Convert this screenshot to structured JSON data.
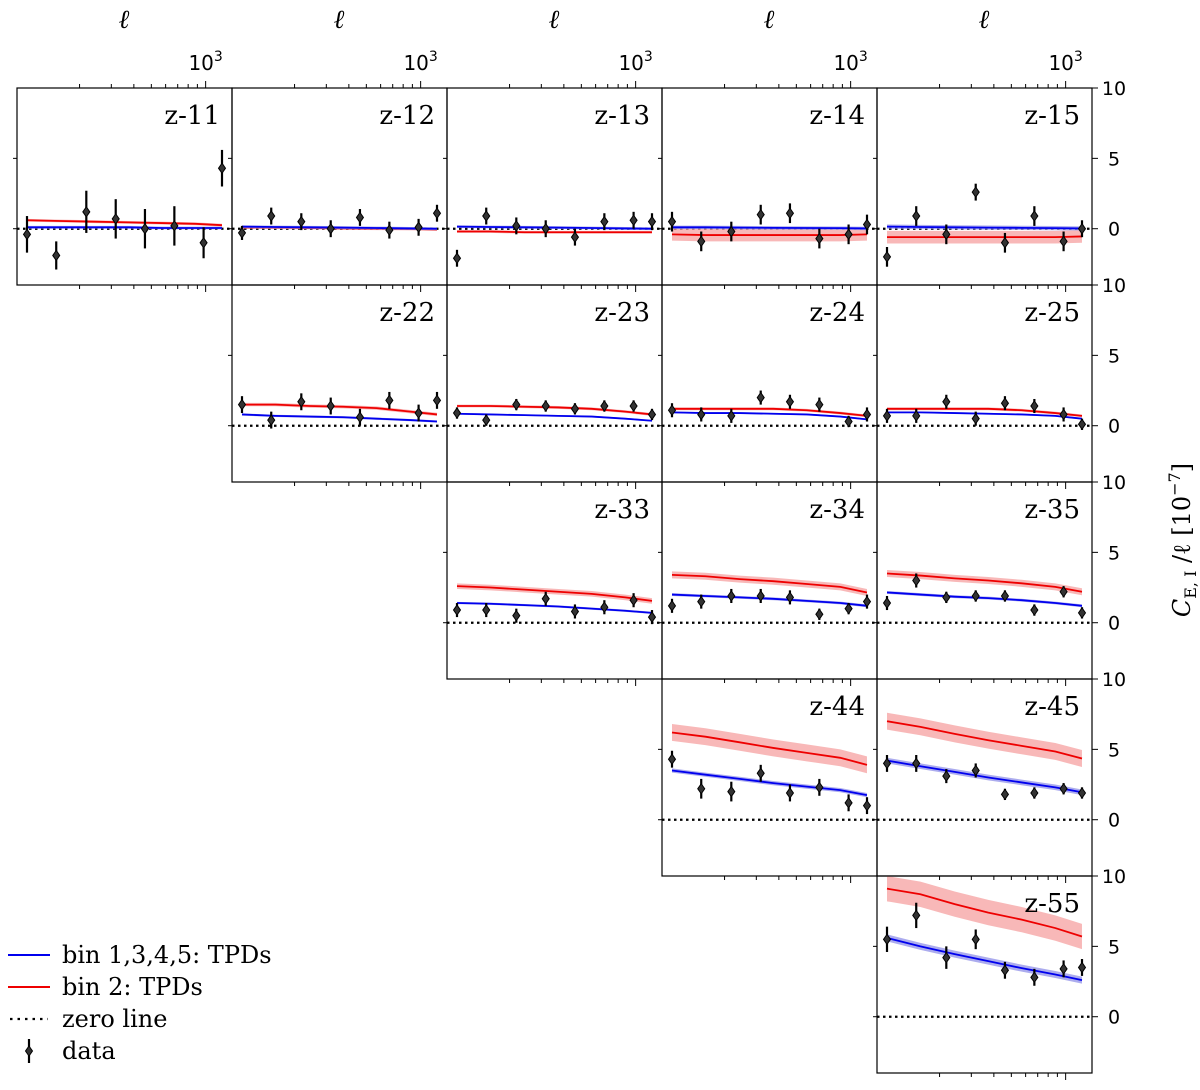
{
  "figure": {
    "top_axis_label": "ℓ",
    "top_tick_mantissa": "10",
    "top_tick_exponent": "3",
    "ylabel_main": "C",
    "ylabel_sub": "E, I",
    "ylabel_rest": " /ℓ [10",
    "ylabel_exp": "−7",
    "ylabel_close": "]"
  },
  "legend": [
    {
      "label": "bin 1,3,4,5: TPDs",
      "kind": "blue-line"
    },
    {
      "label": "bin 2: TPDs",
      "kind": "red-line"
    },
    {
      "label": "zero line",
      "kind": "dotted-line"
    },
    {
      "label": "data",
      "kind": "errorbar"
    }
  ],
  "colors": {
    "blue": "#0000ee",
    "blue_band": "#9090e8",
    "red": "#ee0000",
    "red_band": "#f5a0a0",
    "data": "#000000"
  },
  "chart_data": {
    "type": "line",
    "x_scale": "log",
    "xlim": [
      90,
      1400
    ],
    "ylim": [
      -4,
      10
    ],
    "y_tick_labels": [
      "0",
      "5",
      "10"
    ],
    "y_ticks": [
      0,
      5,
      10
    ],
    "x_ticks_labeled": [
      1000
    ],
    "ell": [
      95,
      150,
      240,
      380,
      600,
      950,
      1350
    ],
    "panels": [
      {
        "label": "z-11",
        "row": 0,
        "col": 0,
        "top_ticks": true,
        "blue": [
          0.1,
          0.1,
          0.1,
          0.1,
          0.05,
          0.05,
          0.05
        ],
        "blue_err": 0.1,
        "red": [
          0.6,
          0.55,
          0.5,
          0.45,
          0.4,
          0.35,
          0.25
        ],
        "red_err": 0.1,
        "data_y": [
          -0.4,
          -1.9,
          1.2,
          0.7,
          0.0,
          0.2,
          -1.0,
          4.3
        ],
        "data_ell": [
          95,
          150,
          240,
          380,
          600,
          950,
          1500,
          2000
        ],
        "data_err": [
          1.3,
          1.0,
          1.5,
          1.4,
          1.4,
          1.4,
          1.1,
          1.3
        ]
      },
      {
        "label": "z-12",
        "row": 0,
        "col": 1,
        "top_ticks": true,
        "blue": [
          0.15,
          0.12,
          0.1,
          0.08,
          0.05,
          0.02,
          0.0
        ],
        "blue_err": 0.1,
        "red": [
          0.1,
          0.08,
          0.05,
          0.03,
          0.0,
          -0.02,
          -0.05
        ],
        "red_err": 0.1,
        "data_y": [
          -0.3,
          0.9,
          0.5,
          0.0,
          0.8,
          -0.1,
          0.1,
          1.1
        ],
        "data_ell": [
          95,
          150,
          240,
          380,
          600,
          950,
          1500,
          2000
        ],
        "data_err": [
          0.5,
          0.6,
          0.6,
          0.6,
          0.6,
          0.6,
          0.6,
          0.6
        ]
      },
      {
        "label": "z-13",
        "row": 0,
        "col": 2,
        "top_ticks": true,
        "blue": [
          0.15,
          0.12,
          0.1,
          0.08,
          0.05,
          0.02,
          0.0
        ],
        "blue_err": 0.1,
        "red": [
          -0.2,
          -0.2,
          -0.25,
          -0.25,
          -0.25,
          -0.25,
          -0.25
        ],
        "red_err": 0.1,
        "data_y": [
          -2.1,
          0.9,
          0.2,
          0.0,
          -0.6,
          0.5,
          0.6,
          0.5
        ],
        "data_ell": [
          95,
          150,
          240,
          380,
          600,
          950,
          1500,
          2000
        ],
        "data_err": [
          0.6,
          0.6,
          0.6,
          0.6,
          0.6,
          0.6,
          0.6,
          0.6
        ]
      },
      {
        "label": "z-14",
        "row": 0,
        "col": 3,
        "top_ticks": true,
        "blue": [
          0.1,
          0.1,
          0.08,
          0.06,
          0.05,
          0.04,
          0.02
        ],
        "blue_err": 0.12,
        "red": [
          -0.4,
          -0.45,
          -0.45,
          -0.45,
          -0.45,
          -0.45,
          -0.4
        ],
        "red_err": 0.45,
        "data_y": [
          0.5,
          -0.9,
          -0.2,
          1.0,
          1.1,
          -0.7,
          -0.4,
          0.3
        ],
        "data_ell": [
          95,
          150,
          240,
          380,
          600,
          950,
          1500,
          2000
        ],
        "data_err": [
          0.7,
          0.7,
          0.7,
          0.7,
          0.7,
          0.7,
          0.7,
          0.7
        ]
      },
      {
        "label": "z-15",
        "row": 0,
        "col": 4,
        "top_ticks": true,
        "blue": [
          0.15,
          0.12,
          0.1,
          0.08,
          0.06,
          0.04,
          0.02
        ],
        "blue_err": 0.15,
        "red": [
          -0.6,
          -0.6,
          -0.6,
          -0.6,
          -0.6,
          -0.6,
          -0.55
        ],
        "red_err": 0.45,
        "data_y": [
          -2.0,
          0.9,
          -0.4,
          2.6,
          -1.0,
          0.9,
          -0.9,
          0.0
        ],
        "data_ell": [
          95,
          150,
          240,
          380,
          600,
          950,
          1500,
          2000
        ],
        "data_err": [
          0.7,
          0.7,
          0.7,
          0.6,
          0.7,
          0.7,
          0.7,
          0.6
        ]
      },
      {
        "label": "z-22",
        "row": 1,
        "col": 1,
        "top_ticks": false,
        "blue": [
          0.8,
          0.7,
          0.65,
          0.6,
          0.5,
          0.4,
          0.3
        ],
        "blue_err": 0.08,
        "red": [
          1.5,
          1.5,
          1.4,
          1.35,
          1.25,
          1.0,
          0.8
        ],
        "red_err": 0.12,
        "data_y": [
          1.5,
          0.4,
          1.7,
          1.4,
          0.6,
          1.8,
          0.9,
          1.8
        ],
        "data_ell": [
          95,
          150,
          240,
          380,
          600,
          950,
          1500,
          2000
        ],
        "data_err": [
          0.6,
          0.6,
          0.6,
          0.6,
          0.6,
          0.6,
          0.6,
          0.6
        ]
      },
      {
        "label": "z-23",
        "row": 1,
        "col": 2,
        "top_ticks": false,
        "blue": [
          0.85,
          0.8,
          0.75,
          0.7,
          0.65,
          0.5,
          0.35
        ],
        "blue_err": 0.06,
        "red": [
          1.4,
          1.4,
          1.35,
          1.3,
          1.2,
          1.0,
          0.8
        ],
        "red_err": 0.1,
        "data_y": [
          0.9,
          0.4,
          1.5,
          1.4,
          1.2,
          1.4,
          1.4,
          0.8
        ],
        "data_ell": [
          95,
          150,
          240,
          380,
          600,
          950,
          1500,
          2000
        ],
        "data_err": [
          0.4,
          0.4,
          0.4,
          0.4,
          0.4,
          0.4,
          0.4,
          0.4
        ]
      },
      {
        "label": "z-24",
        "row": 1,
        "col": 3,
        "top_ticks": false,
        "blue": [
          0.95,
          0.9,
          0.9,
          0.85,
          0.8,
          0.65,
          0.45
        ],
        "blue_err": 0.06,
        "red": [
          1.2,
          1.2,
          1.2,
          1.2,
          1.1,
          0.9,
          0.7
        ],
        "red_err": 0.1,
        "data_y": [
          1.1,
          0.8,
          0.7,
          2.0,
          1.7,
          1.5,
          0.3,
          0.8
        ],
        "data_ell": [
          95,
          150,
          240,
          380,
          600,
          950,
          1500,
          2000
        ],
        "data_err": [
          0.5,
          0.5,
          0.5,
          0.5,
          0.5,
          0.5,
          0.4,
          0.5
        ]
      },
      {
        "label": "z-25",
        "row": 1,
        "col": 4,
        "top_ticks": false,
        "blue": [
          0.95,
          0.95,
          0.9,
          0.85,
          0.8,
          0.7,
          0.5
        ],
        "blue_err": 0.06,
        "red": [
          1.2,
          1.2,
          1.2,
          1.2,
          1.1,
          0.9,
          0.7
        ],
        "red_err": 0.1,
        "data_y": [
          0.7,
          0.7,
          1.7,
          0.5,
          1.6,
          1.4,
          0.8,
          0.1
        ],
        "data_ell": [
          95,
          150,
          240,
          380,
          600,
          950,
          1500,
          2000
        ],
        "data_err": [
          0.5,
          0.5,
          0.5,
          0.5,
          0.5,
          0.5,
          0.5,
          0.4
        ]
      },
      {
        "label": "z-33",
        "row": 2,
        "col": 2,
        "top_ticks": false,
        "blue": [
          1.4,
          1.35,
          1.25,
          1.15,
          1.0,
          0.85,
          0.7
        ],
        "blue_err": 0.08,
        "red": [
          2.6,
          2.5,
          2.35,
          2.2,
          2.05,
          1.8,
          1.55
        ],
        "red_err": 0.2,
        "data_y": [
          0.9,
          0.9,
          0.5,
          1.7,
          0.8,
          1.1,
          1.6,
          0.4
        ],
        "data_ell": [
          95,
          150,
          240,
          380,
          600,
          950,
          1500,
          2000
        ],
        "data_err": [
          0.5,
          0.5,
          0.5,
          0.5,
          0.5,
          0.5,
          0.5,
          0.5
        ]
      },
      {
        "label": "z-34",
        "row": 2,
        "col": 3,
        "top_ticks": false,
        "blue": [
          2.0,
          1.9,
          1.8,
          1.7,
          1.55,
          1.4,
          1.2
        ],
        "blue_err": 0.1,
        "red": [
          3.4,
          3.3,
          3.1,
          2.95,
          2.75,
          2.55,
          2.15
        ],
        "red_err": 0.25,
        "data_y": [
          1.2,
          1.5,
          1.9,
          1.9,
          1.8,
          0.6,
          1.0,
          1.5
        ],
        "data_ell": [
          95,
          150,
          240,
          380,
          600,
          950,
          1500,
          2000
        ],
        "data_err": [
          0.5,
          0.5,
          0.5,
          0.5,
          0.5,
          0.4,
          0.4,
          0.5
        ]
      },
      {
        "label": "z-35",
        "row": 2,
        "col": 4,
        "top_ticks": false,
        "blue": [
          2.15,
          2.0,
          1.85,
          1.75,
          1.6,
          1.4,
          1.2
        ],
        "blue_err": 0.1,
        "red": [
          3.5,
          3.35,
          3.15,
          3.0,
          2.8,
          2.55,
          2.2
        ],
        "red_err": 0.25,
        "data_y": [
          1.4,
          3.0,
          1.8,
          1.9,
          1.9,
          0.9,
          2.2,
          0.7
        ],
        "data_ell": [
          95,
          150,
          240,
          380,
          600,
          950,
          1500,
          2000
        ],
        "data_err": [
          0.5,
          0.5,
          0.4,
          0.4,
          0.4,
          0.4,
          0.4,
          0.4
        ]
      },
      {
        "label": "z-44",
        "row": 3,
        "col": 3,
        "top_ticks": false,
        "blue": [
          3.5,
          3.2,
          2.9,
          2.6,
          2.35,
          2.1,
          1.75
        ],
        "blue_err": 0.15,
        "red": [
          6.2,
          5.9,
          5.5,
          5.1,
          4.75,
          4.4,
          3.9
        ],
        "red_err": 0.6,
        "data_y": [
          4.3,
          2.2,
          2.0,
          3.3,
          1.9,
          2.3,
          1.2,
          1.0
        ],
        "data_ell": [
          95,
          150,
          240,
          380,
          600,
          950,
          1500,
          2000
        ],
        "data_err": [
          0.6,
          0.7,
          0.7,
          0.6,
          0.6,
          0.6,
          0.6,
          0.6
        ]
      },
      {
        "label": "z-45",
        "row": 3,
        "col": 4,
        "top_ticks": false,
        "blue": [
          4.2,
          3.8,
          3.4,
          3.0,
          2.65,
          2.3,
          1.95
        ],
        "blue_err": 0.2,
        "red": [
          7.0,
          6.6,
          6.1,
          5.65,
          5.25,
          4.85,
          4.35
        ],
        "red_err": 0.6,
        "data_y": [
          4.0,
          4.0,
          3.1,
          3.5,
          1.8,
          1.9,
          2.2,
          1.9
        ],
        "data_ell": [
          95,
          150,
          240,
          380,
          600,
          950,
          1500,
          2000
        ],
        "data_err": [
          0.6,
          0.6,
          0.5,
          0.5,
          0.4,
          0.4,
          0.4,
          0.4
        ]
      },
      {
        "label": "z-55",
        "row": 4,
        "col": 4,
        "top_ticks": false,
        "blue": [
          5.6,
          5.0,
          4.45,
          3.95,
          3.45,
          3.0,
          2.6
        ],
        "blue_err": 0.25,
        "red": [
          9.1,
          8.7,
          8.0,
          7.4,
          6.9,
          6.3,
          5.7
        ],
        "red_err": 0.9,
        "data_y": [
          5.5,
          7.2,
          4.2,
          5.5,
          3.3,
          2.8,
          3.4,
          3.5
        ],
        "data_ell": [
          95,
          150,
          240,
          380,
          600,
          950,
          1500,
          2000
        ],
        "data_err": [
          0.9,
          0.9,
          0.8,
          0.7,
          0.6,
          0.6,
          0.6,
          0.6
        ]
      }
    ]
  }
}
